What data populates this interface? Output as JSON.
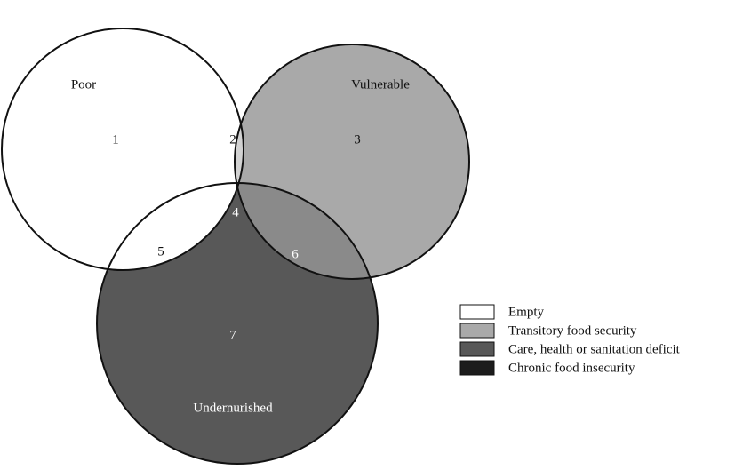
{
  "sets": [
    {
      "label": "Poor"
    },
    {
      "label": "Vulnerable"
    },
    {
      "label": "Undernurished"
    }
  ],
  "regions": [
    {
      "label": 1
    },
    {
      "label": 2
    },
    {
      "label": 3
    },
    {
      "label": 4
    },
    {
      "label": 5
    },
    {
      "label": 6
    },
    {
      "label": 7
    }
  ],
  "legend": [
    {
      "label": "Empty"
    },
    {
      "label": "Transitory food security"
    },
    {
      "label": "Care, health or sanitation deficit"
    },
    {
      "label": "Chronic food insecurity"
    }
  ]
}
